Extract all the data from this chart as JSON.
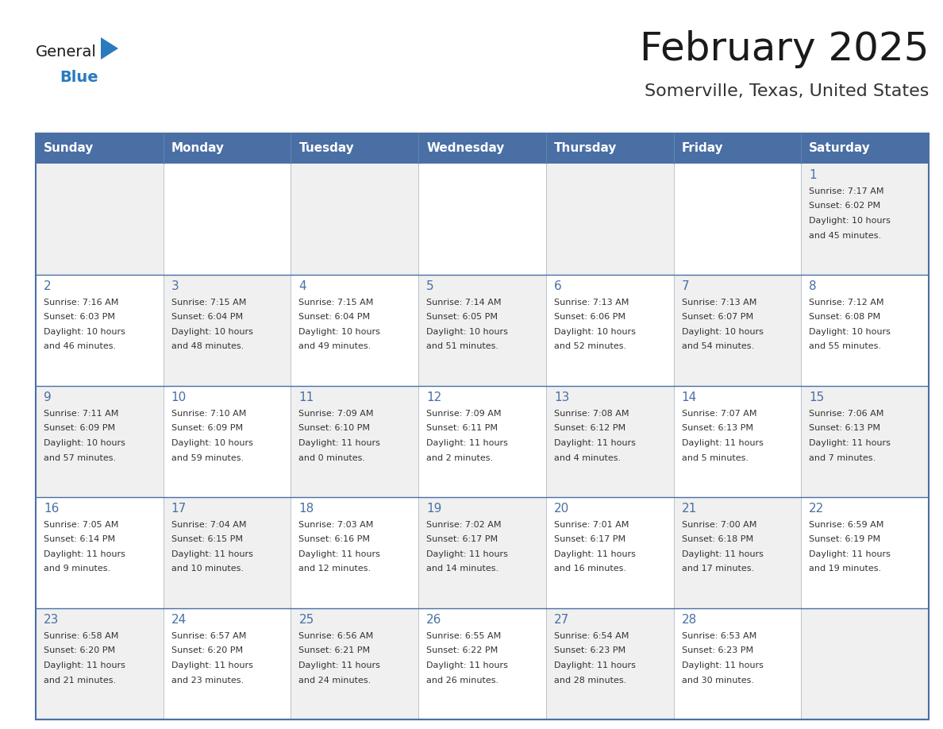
{
  "title": "February 2025",
  "subtitle": "Somerville, Texas, United States",
  "days_of_week": [
    "Sunday",
    "Monday",
    "Tuesday",
    "Wednesday",
    "Thursday",
    "Friday",
    "Saturday"
  ],
  "header_bg": "#4a6fa5",
  "header_text": "#ffffff",
  "cell_bg_light": "#f0f0f0",
  "cell_bg_white": "#ffffff",
  "grid_line_color": "#4a6fa5",
  "title_color": "#1a1a1a",
  "subtitle_color": "#333333",
  "day_number_color": "#4a6fa5",
  "info_text_color": "#333333",
  "logo_general_color": "#1a1a1a",
  "logo_blue_color": "#2a7abf",
  "weeks": [
    [
      null,
      null,
      null,
      null,
      null,
      null,
      1
    ],
    [
      2,
      3,
      4,
      5,
      6,
      7,
      8
    ],
    [
      9,
      10,
      11,
      12,
      13,
      14,
      15
    ],
    [
      16,
      17,
      18,
      19,
      20,
      21,
      22
    ],
    [
      23,
      24,
      25,
      26,
      27,
      28,
      null
    ]
  ],
  "cell_data": {
    "1": [
      "Sunrise: 7:17 AM",
      "Sunset: 6:02 PM",
      "Daylight: 10 hours",
      "and 45 minutes."
    ],
    "2": [
      "Sunrise: 7:16 AM",
      "Sunset: 6:03 PM",
      "Daylight: 10 hours",
      "and 46 minutes."
    ],
    "3": [
      "Sunrise: 7:15 AM",
      "Sunset: 6:04 PM",
      "Daylight: 10 hours",
      "and 48 minutes."
    ],
    "4": [
      "Sunrise: 7:15 AM",
      "Sunset: 6:04 PM",
      "Daylight: 10 hours",
      "and 49 minutes."
    ],
    "5": [
      "Sunrise: 7:14 AM",
      "Sunset: 6:05 PM",
      "Daylight: 10 hours",
      "and 51 minutes."
    ],
    "6": [
      "Sunrise: 7:13 AM",
      "Sunset: 6:06 PM",
      "Daylight: 10 hours",
      "and 52 minutes."
    ],
    "7": [
      "Sunrise: 7:13 AM",
      "Sunset: 6:07 PM",
      "Daylight: 10 hours",
      "and 54 minutes."
    ],
    "8": [
      "Sunrise: 7:12 AM",
      "Sunset: 6:08 PM",
      "Daylight: 10 hours",
      "and 55 minutes."
    ],
    "9": [
      "Sunrise: 7:11 AM",
      "Sunset: 6:09 PM",
      "Daylight: 10 hours",
      "and 57 minutes."
    ],
    "10": [
      "Sunrise: 7:10 AM",
      "Sunset: 6:09 PM",
      "Daylight: 10 hours",
      "and 59 minutes."
    ],
    "11": [
      "Sunrise: 7:09 AM",
      "Sunset: 6:10 PM",
      "Daylight: 11 hours",
      "and 0 minutes."
    ],
    "12": [
      "Sunrise: 7:09 AM",
      "Sunset: 6:11 PM",
      "Daylight: 11 hours",
      "and 2 minutes."
    ],
    "13": [
      "Sunrise: 7:08 AM",
      "Sunset: 6:12 PM",
      "Daylight: 11 hours",
      "and 4 minutes."
    ],
    "14": [
      "Sunrise: 7:07 AM",
      "Sunset: 6:13 PM",
      "Daylight: 11 hours",
      "and 5 minutes."
    ],
    "15": [
      "Sunrise: 7:06 AM",
      "Sunset: 6:13 PM",
      "Daylight: 11 hours",
      "and 7 minutes."
    ],
    "16": [
      "Sunrise: 7:05 AM",
      "Sunset: 6:14 PM",
      "Daylight: 11 hours",
      "and 9 minutes."
    ],
    "17": [
      "Sunrise: 7:04 AM",
      "Sunset: 6:15 PM",
      "Daylight: 11 hours",
      "and 10 minutes."
    ],
    "18": [
      "Sunrise: 7:03 AM",
      "Sunset: 6:16 PM",
      "Daylight: 11 hours",
      "and 12 minutes."
    ],
    "19": [
      "Sunrise: 7:02 AM",
      "Sunset: 6:17 PM",
      "Daylight: 11 hours",
      "and 14 minutes."
    ],
    "20": [
      "Sunrise: 7:01 AM",
      "Sunset: 6:17 PM",
      "Daylight: 11 hours",
      "and 16 minutes."
    ],
    "21": [
      "Sunrise: 7:00 AM",
      "Sunset: 6:18 PM",
      "Daylight: 11 hours",
      "and 17 minutes."
    ],
    "22": [
      "Sunrise: 6:59 AM",
      "Sunset: 6:19 PM",
      "Daylight: 11 hours",
      "and 19 minutes."
    ],
    "23": [
      "Sunrise: 6:58 AM",
      "Sunset: 6:20 PM",
      "Daylight: 11 hours",
      "and 21 minutes."
    ],
    "24": [
      "Sunrise: 6:57 AM",
      "Sunset: 6:20 PM",
      "Daylight: 11 hours",
      "and 23 minutes."
    ],
    "25": [
      "Sunrise: 6:56 AM",
      "Sunset: 6:21 PM",
      "Daylight: 11 hours",
      "and 24 minutes."
    ],
    "26": [
      "Sunrise: 6:55 AM",
      "Sunset: 6:22 PM",
      "Daylight: 11 hours",
      "and 26 minutes."
    ],
    "27": [
      "Sunrise: 6:54 AM",
      "Sunset: 6:23 PM",
      "Daylight: 11 hours",
      "and 28 minutes."
    ],
    "28": [
      "Sunrise: 6:53 AM",
      "Sunset: 6:23 PM",
      "Daylight: 11 hours",
      "and 30 minutes."
    ]
  },
  "fig_width": 11.88,
  "fig_height": 9.18,
  "dpi": 100
}
